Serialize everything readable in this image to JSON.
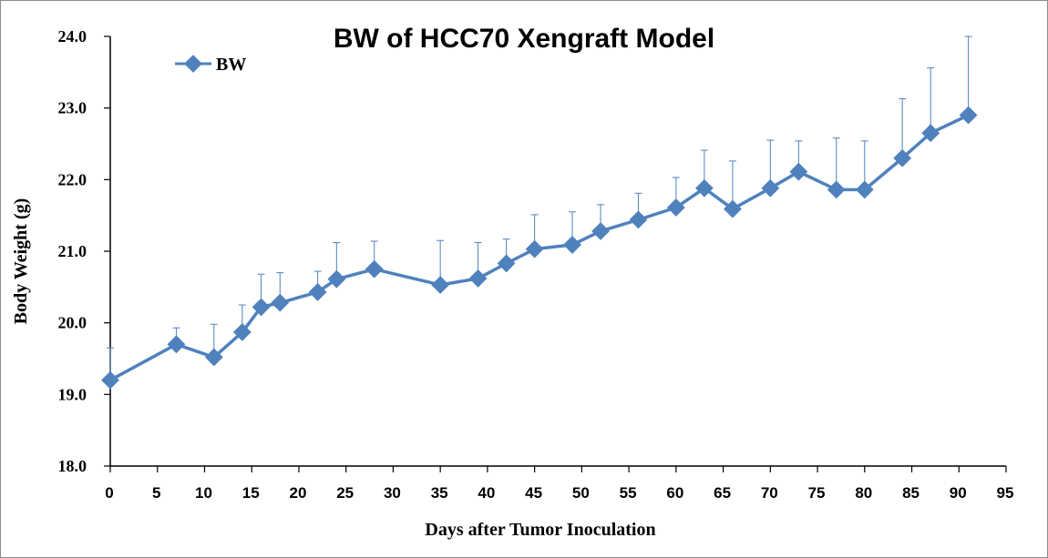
{
  "chart_data": {
    "type": "line",
    "title": "BW of HCC70  Xengraft Model",
    "xlabel": "Days after Tumor Inoculation",
    "ylabel": "Body Weight (g)",
    "xlim": [
      0,
      95
    ],
    "ylim": [
      18.0,
      24.0
    ],
    "x_ticks": [
      "0",
      "5",
      "10",
      "15",
      "20",
      "25",
      "30",
      "35",
      "40",
      "45",
      "50",
      "55",
      "60",
      "65",
      "70",
      "75",
      "80",
      "85",
      "90",
      "95"
    ],
    "y_ticks": [
      "18.0",
      "19.0",
      "20.0",
      "21.0",
      "22.0",
      "23.0",
      "24.0"
    ],
    "grid": false,
    "legend": {
      "position": "top-left",
      "entries": [
        "BW"
      ]
    },
    "colors": {
      "series": "#4f81bd"
    },
    "series": [
      {
        "name": "BW",
        "x": [
          0,
          7,
          11,
          14,
          16,
          18,
          22,
          24,
          28,
          35,
          39,
          42,
          45,
          49,
          52,
          56,
          60,
          63,
          66,
          70,
          73,
          77,
          80,
          84,
          87,
          91
        ],
        "y": [
          19.2,
          19.7,
          19.52,
          19.87,
          20.22,
          20.28,
          20.43,
          20.61,
          20.75,
          20.53,
          20.62,
          20.83,
          21.03,
          21.09,
          21.28,
          21.44,
          21.61,
          21.88,
          21.59,
          21.88,
          22.11,
          21.86,
          21.86,
          22.3,
          22.65,
          22.9
        ],
        "error": [
          0.45,
          0.23,
          0.46,
          0.38,
          0.46,
          0.42,
          0.29,
          0.51,
          0.39,
          0.62,
          0.5,
          0.34,
          0.48,
          0.46,
          0.37,
          0.37,
          0.42,
          0.53,
          0.67,
          0.67,
          0.43,
          0.72,
          0.68,
          0.83,
          0.91,
          1.1
        ]
      }
    ]
  }
}
